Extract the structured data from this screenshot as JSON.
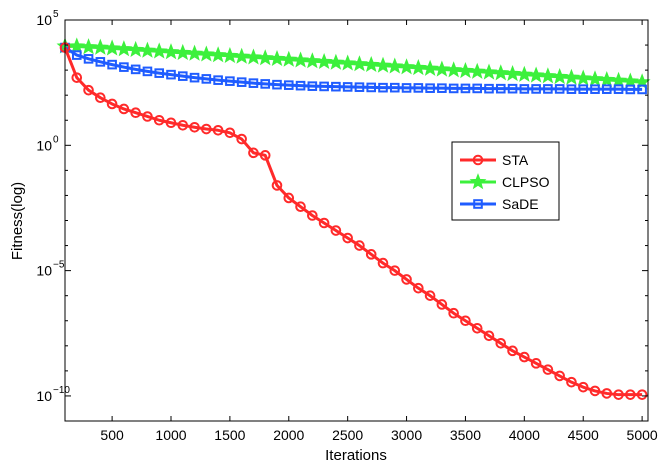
{
  "chart_data": {
    "type": "line",
    "xlabel": "Iterations",
    "ylabel": "Fitness(log)",
    "xlim": [
      100,
      5050
    ],
    "ylim_log10": [
      -11,
      5
    ],
    "y_scale": "log",
    "grid": false,
    "legend_position": "center-right",
    "x_ticks": [
      500,
      1000,
      1500,
      2000,
      2500,
      3000,
      3500,
      4000,
      4500,
      5000
    ],
    "x_tick_labels": [
      "500",
      "1000",
      "1500",
      "2000",
      "2500",
      "3000",
      "3500",
      "4000",
      "4500",
      "5000"
    ],
    "y_ticks_log10": [
      -10,
      -5,
      0,
      5
    ],
    "y_tick_labels": [
      {
        "base": "10",
        "exp": "−10"
      },
      {
        "base": "10",
        "exp": "−5"
      },
      {
        "base": "10",
        "exp": "0"
      },
      {
        "base": "10",
        "exp": "5"
      }
    ],
    "x": [
      100,
      200,
      300,
      400,
      500,
      600,
      700,
      800,
      900,
      1000,
      1100,
      1200,
      1300,
      1400,
      1500,
      1600,
      1700,
      1800,
      1900,
      2000,
      2100,
      2200,
      2300,
      2400,
      2500,
      2600,
      2700,
      2800,
      2900,
      3000,
      3100,
      3200,
      3300,
      3400,
      3500,
      3600,
      3700,
      3800,
      3900,
      4000,
      4100,
      4200,
      4300,
      4400,
      4500,
      4600,
      4700,
      4800,
      4900,
      5000
    ],
    "series": [
      {
        "name": "STA",
        "color": "#ff2a2a",
        "marker": "circle",
        "values_log10": [
          3.9,
          2.7,
          2.2,
          1.9,
          1.65,
          1.45,
          1.3,
          1.15,
          1.0,
          0.9,
          0.8,
          0.72,
          0.65,
          0.6,
          0.5,
          0.25,
          -0.3,
          -0.4,
          -1.6,
          -2.1,
          -2.45,
          -2.8,
          -3.1,
          -3.4,
          -3.7,
          -4.0,
          -4.35,
          -4.7,
          -5.0,
          -5.35,
          -5.7,
          -6.0,
          -6.35,
          -6.7,
          -7.0,
          -7.3,
          -7.6,
          -7.9,
          -8.2,
          -8.45,
          -8.7,
          -8.95,
          -9.2,
          -9.45,
          -9.65,
          -9.8,
          -9.9,
          -9.95,
          -9.95,
          -9.95
        ]
      },
      {
        "name": "CLPSO",
        "color": "#3cf03c",
        "marker": "star",
        "values_log10": [
          3.95,
          3.95,
          3.92,
          3.9,
          3.87,
          3.84,
          3.81,
          3.78,
          3.75,
          3.72,
          3.69,
          3.66,
          3.63,
          3.6,
          3.57,
          3.54,
          3.51,
          3.48,
          3.45,
          3.42,
          3.39,
          3.36,
          3.33,
          3.3,
          3.27,
          3.24,
          3.21,
          3.18,
          3.15,
          3.12,
          3.09,
          3.06,
          3.03,
          3.0,
          2.97,
          2.94,
          2.91,
          2.88,
          2.85,
          2.82,
          2.79,
          2.76,
          2.73,
          2.7,
          2.67,
          2.64,
          2.61,
          2.58,
          2.55,
          2.52
        ]
      },
      {
        "name": "SaDE",
        "color": "#1f5cff",
        "marker": "square",
        "values_log10": [
          3.9,
          3.6,
          3.45,
          3.33,
          3.22,
          3.12,
          3.03,
          2.95,
          2.88,
          2.82,
          2.76,
          2.7,
          2.65,
          2.6,
          2.56,
          2.52,
          2.48,
          2.45,
          2.42,
          2.4,
          2.38,
          2.36,
          2.35,
          2.34,
          2.33,
          2.32,
          2.31,
          2.3,
          2.3,
          2.29,
          2.29,
          2.28,
          2.28,
          2.27,
          2.27,
          2.27,
          2.26,
          2.26,
          2.26,
          2.25,
          2.25,
          2.25,
          2.25,
          2.24,
          2.24,
          2.24,
          2.24,
          2.24,
          2.23,
          2.23
        ]
      }
    ]
  }
}
